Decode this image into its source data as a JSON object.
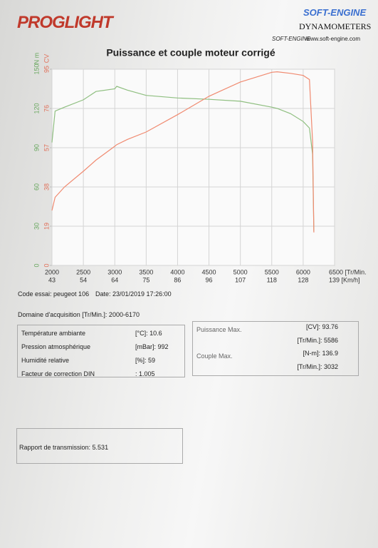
{
  "header": {
    "logo": "PROGLIGHT",
    "brand": "SOFT-ENGINE",
    "brand_sub": "DYNAMOMETERS",
    "brand_small": "SOFT-ENGINE",
    "website": "www.soft-engine.com"
  },
  "chart_data": {
    "type": "line",
    "title": "Puissance et couple moteur corrigé",
    "ylabel": "N m",
    "y2label": "CV",
    "x": [
      2000,
      2050,
      2200,
      2500,
      2700,
      3000,
      3032,
      3200,
      3500,
      4000,
      4500,
      5000,
      5500,
      5586,
      5800,
      6000,
      6100,
      6150,
      6170
    ],
    "series": [
      {
        "color": "#8fbf80",
        "values": [
          94,
          118,
          121,
          126.6,
          133,
          135,
          136.9,
          134,
          130,
          128,
          127,
          125.5,
          121,
          120,
          116,
          110,
          105,
          85,
          26
        ]
      },
      {
        "color": "#f08a70",
        "axis": "y2",
        "values": [
          26.6,
          33,
          38,
          45.6,
          51,
          57.7,
          58.5,
          61,
          64.6,
          73,
          81.9,
          88.8,
          93.5,
          93.76,
          93,
          92,
          90,
          60,
          16
        ]
      }
    ],
    "xlim": [
      2000,
      6500
    ],
    "xticks": [
      2000,
      2500,
      3000,
      3500,
      4000,
      4500,
      5000,
      5500,
      6000,
      {
        "value": 6500,
        "label": "6500 [Tr/Min."
      }
    ],
    "x_speed_labels": [
      "43",
      "54",
      "64",
      "75",
      "86",
      "96",
      "107",
      "118",
      "128",
      "139 [Km/h]"
    ],
    "ylim": [
      0,
      150
    ],
    "yticks": [
      0,
      30,
      60,
      90,
      120,
      150
    ],
    "y2lim": [
      0,
      95
    ],
    "y2ticks": [
      0,
      19,
      38,
      57,
      76,
      95
    ],
    "grid": true
  },
  "test": {
    "code": "Code essai: peugeot 106",
    "date": "Date: 23/01/2019 17:26:00",
    "range": "Domaine d'acquisition [Tr/Min.]: 2000-6170"
  },
  "conditions": [
    [
      "Température ambiante",
      "[°C]: 10.6"
    ],
    [
      "Pression atmosphérique",
      "[mBar]: 992"
    ],
    [
      "Humidité relative",
      "[%]: 59"
    ],
    [
      "Facteur de correction DIN",
      ": 1.005"
    ]
  ],
  "results": {
    "power_label": "Puissance Max.",
    "power": "[CV]: 93.76",
    "power_rpm": "[Tr/Min.]: 5586",
    "torque_label": "Couple Max.",
    "torque": "[N-m]: 136.9",
    "torque_rpm": "[Tr/Min.]: 3032"
  },
  "footer": {
    "transmission": "Rapport de transmission: 5.531"
  }
}
